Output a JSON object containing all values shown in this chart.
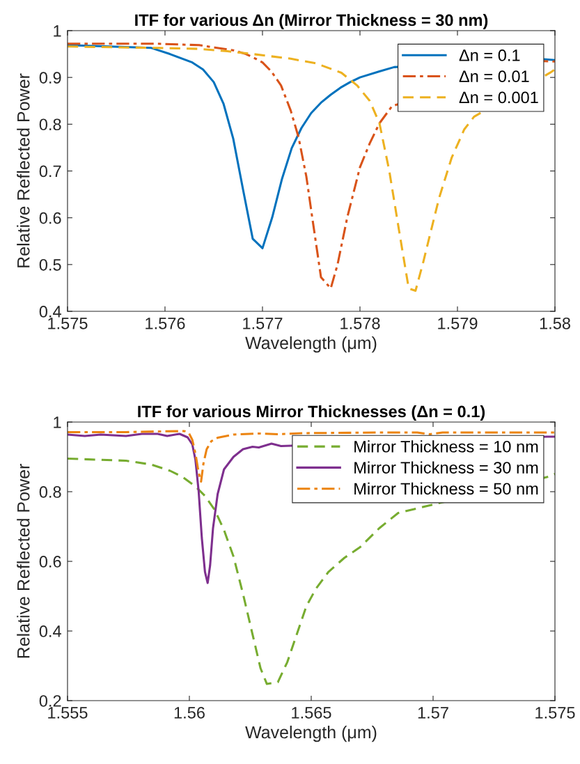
{
  "chart_data": [
    {
      "type": "line",
      "title": "ITF for various Δn (Mirror Thickness = 30 nm)",
      "xlabel": "Wavelength (μm)",
      "ylabel": "Relative Reflected Power",
      "xlim": [
        1.575,
        1.58
      ],
      "xticks": [
        1.575,
        1.576,
        1.577,
        1.578,
        1.579,
        1.58
      ],
      "ylim": [
        0.4,
        1
      ],
      "yticks": [
        0.4,
        0.5,
        0.6,
        0.7,
        0.8,
        0.9,
        1
      ],
      "grid": false,
      "legend": "top right",
      "marker": "none",
      "series": [
        {
          "name": "Δn = 0.1",
          "color": "#0072bd",
          "line_style": "solid",
          "x": [
            1.575,
            1.57586,
            1.57605,
            1.57628,
            1.57639,
            1.5765,
            1.5766,
            1.5767,
            1.5768,
            1.5769,
            1.577,
            1.5771,
            1.5772,
            1.5773,
            1.5774,
            1.5775,
            1.5776,
            1.5777,
            1.5778,
            1.5779,
            1.578,
            1.5782,
            1.57835,
            1.57988,
            1.58
          ],
          "values": [
            0.969,
            0.963,
            0.95,
            0.932,
            0.917,
            0.89,
            0.844,
            0.769,
            0.661,
            0.555,
            0.535,
            0.601,
            0.683,
            0.749,
            0.792,
            0.824,
            0.846,
            0.863,
            0.878,
            0.89,
            0.9,
            0.913,
            0.922,
            0.939,
            0.937
          ]
        },
        {
          "name": "Δn = 0.01",
          "color": "#d95319",
          "line_style": "dashdot",
          "x": [
            1.575,
            1.57592,
            1.57635,
            1.57651,
            1.5767,
            1.57683,
            1.57693,
            1.577,
            1.57709,
            1.57719,
            1.57729,
            1.57737,
            1.57745,
            1.57751,
            1.5776,
            1.5777,
            1.57777,
            1.57787,
            1.578,
            1.5781,
            1.5782,
            1.57833,
            1.57988,
            1.58
          ],
          "values": [
            0.972,
            0.972,
            0.969,
            0.964,
            0.958,
            0.95,
            0.94,
            0.932,
            0.913,
            0.883,
            0.829,
            0.772,
            0.688,
            0.601,
            0.473,
            0.449,
            0.5,
            0.601,
            0.708,
            0.759,
            0.802,
            0.839,
            0.935,
            0.934
          ]
        },
        {
          "name": "Δn = 0.001",
          "color": "#edb120",
          "line_style": "dashed",
          "x": [
            1.575,
            1.57592,
            1.57635,
            1.57664,
            1.5769,
            1.57729,
            1.57755,
            1.57781,
            1.57797,
            1.5781,
            1.5782,
            1.5783,
            1.5784,
            1.5785,
            1.57857,
            1.57865,
            1.57881,
            1.57894,
            1.57907,
            1.57917,
            1.57995,
            1.58
          ],
          "values": [
            0.966,
            0.963,
            0.961,
            0.956,
            0.95,
            0.94,
            0.93,
            0.91,
            0.883,
            0.85,
            0.802,
            0.701,
            0.574,
            0.449,
            0.444,
            0.506,
            0.641,
            0.728,
            0.789,
            0.816,
            0.91,
            0.917
          ]
        }
      ]
    },
    {
      "type": "line",
      "title": "ITF for various Mirror Thicknesses (Δn = 0.1)",
      "xlabel": "Wavelength (μm)",
      "ylabel": "Relative Reflected Power",
      "xlim": [
        1.555,
        1.575
      ],
      "xticks": [
        1.555,
        1.56,
        1.565,
        1.57,
        1.575
      ],
      "ylim": [
        0.2,
        1
      ],
      "yticks": [
        0.2,
        0.4,
        0.6,
        0.8,
        1
      ],
      "grid": false,
      "legend": "top right",
      "marker": "none",
      "series": [
        {
          "name": "Mirror Thickness = 10 nm",
          "color": "#77ac30",
          "line_style": "dashed",
          "x": [
            1.555,
            1.5574,
            1.55843,
            1.55921,
            1.55973,
            1.56025,
            1.56064,
            1.56104,
            1.56142,
            1.56181,
            1.5622,
            1.56259,
            1.56292,
            1.56318,
            1.56363,
            1.56402,
            1.56441,
            1.5648,
            1.56519,
            1.56571,
            1.56636,
            1.56701,
            1.56779,
            1.56857,
            1.57467,
            1.575
          ],
          "values": [
            0.895,
            0.889,
            0.878,
            0.86,
            0.842,
            0.815,
            0.788,
            0.748,
            0.69,
            0.614,
            0.507,
            0.391,
            0.293,
            0.248,
            0.253,
            0.311,
            0.391,
            0.471,
            0.521,
            0.57,
            0.61,
            0.641,
            0.695,
            0.739,
            0.842,
            0.851
          ]
        },
        {
          "name": "Mirror Thickness = 30 nm",
          "color": "#7e2f8e",
          "line_style": "solid",
          "x": [
            1.555,
            1.55571,
            1.55636,
            1.5574,
            1.55805,
            1.5587,
            1.55909,
            1.5596,
            1.55993,
            1.56012,
            1.56025,
            1.56038,
            1.56051,
            1.56064,
            1.56075,
            1.56085,
            1.56097,
            1.56116,
            1.56142,
            1.56181,
            1.5622,
            1.56259,
            1.56285,
            1.56337,
            1.56376,
            1.57467,
            1.575
          ],
          "values": [
            0.964,
            0.96,
            0.964,
            0.96,
            0.966,
            0.966,
            0.96,
            0.966,
            0.956,
            0.936,
            0.891,
            0.802,
            0.668,
            0.57,
            0.538,
            0.588,
            0.695,
            0.793,
            0.864,
            0.9,
            0.922,
            0.929,
            0.927,
            0.938,
            0.931,
            0.958,
            0.958
          ]
        },
        {
          "name": "Mirror Thickness = 50 nm",
          "color": "#ec8410",
          "line_style": "dashdot",
          "x": [
            1.555,
            1.5574,
            1.5587,
            1.5598,
            1.55999,
            1.56012,
            1.56025,
            1.56038,
            1.56048,
            1.56058,
            1.56071,
            1.5609,
            1.56116,
            1.56181,
            1.56285,
            1.56363,
            1.56467,
            1.56779,
            1.56935,
            1.56987,
            1.57039,
            1.575
          ],
          "values": [
            0.971,
            0.971,
            0.973,
            0.974,
            0.967,
            0.949,
            0.909,
            0.855,
            0.829,
            0.882,
            0.922,
            0.945,
            0.955,
            0.964,
            0.967,
            0.965,
            0.968,
            0.97,
            0.97,
            0.965,
            0.97,
            0.97
          ]
        }
      ]
    }
  ]
}
